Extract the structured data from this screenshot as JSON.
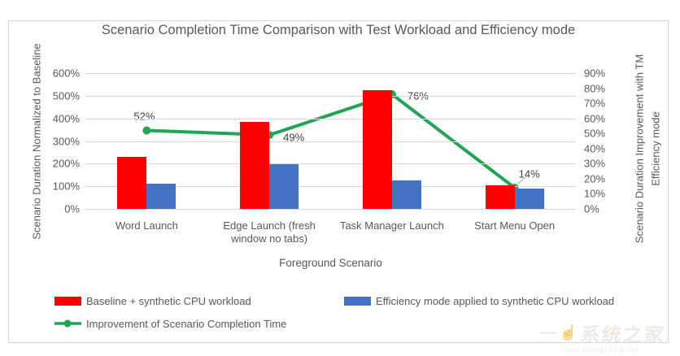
{
  "chart_data": {
    "type": "bar",
    "subtype": "combo-bar-line-dual-axis",
    "title": "Scenario Completion Time Comparison with Test Workload and Efficiency mode",
    "categories": [
      "Word Launch",
      "Edge Launch (fresh window no tabs)",
      "Task Manager Launch",
      "Start Menu Open"
    ],
    "series": [
      {
        "name": "Baseline + synthetic CPU  workload",
        "type": "bar",
        "axis": "left",
        "color": "#ff0000",
        "values": [
          230,
          385,
          525,
          105
        ]
      },
      {
        "name": "Efficiency mode applied to synthetic CPU workload",
        "type": "bar",
        "axis": "left",
        "color": "#4472c4",
        "values": [
          110,
          196,
          126,
          90
        ]
      },
      {
        "name": "Improvement of Scenario Completion Time",
        "type": "line",
        "axis": "right",
        "color": "#22a455",
        "values": [
          52,
          49,
          76,
          14
        ],
        "data_labels": [
          "52%",
          "49%",
          "76%",
          "14%"
        ]
      }
    ],
    "xlabel": "Foreground Scenario",
    "left_axis": {
      "title": "Scenario Duration Normalized to Baseline",
      "min": 0,
      "max": 600,
      "step": 100,
      "tick_labels": [
        "0%",
        "100%",
        "200%",
        "300%",
        "400%",
        "500%",
        "600%"
      ]
    },
    "right_axis": {
      "title_line1": "Scenario Duration Improvement with TM",
      "title_line2": "Efficiency mode",
      "min": 0,
      "max": 90,
      "step": 10,
      "tick_labels": [
        "0%",
        "10%",
        "20%",
        "30%",
        "40%",
        "50%",
        "60%",
        "70%",
        "80%",
        "90%"
      ]
    },
    "grid": true,
    "legend_position": "bottom-left",
    "colors": {
      "gridline": "#d9d9d9",
      "text": "#595959",
      "data_label": "#3f3f3f",
      "leader_line": "#a6a6a6"
    }
  },
  "watermark": {
    "dash": "—",
    "logo_glyph": "☝",
    "brand": "系统之家",
    "sub": "www.xitongzhijia.net"
  }
}
